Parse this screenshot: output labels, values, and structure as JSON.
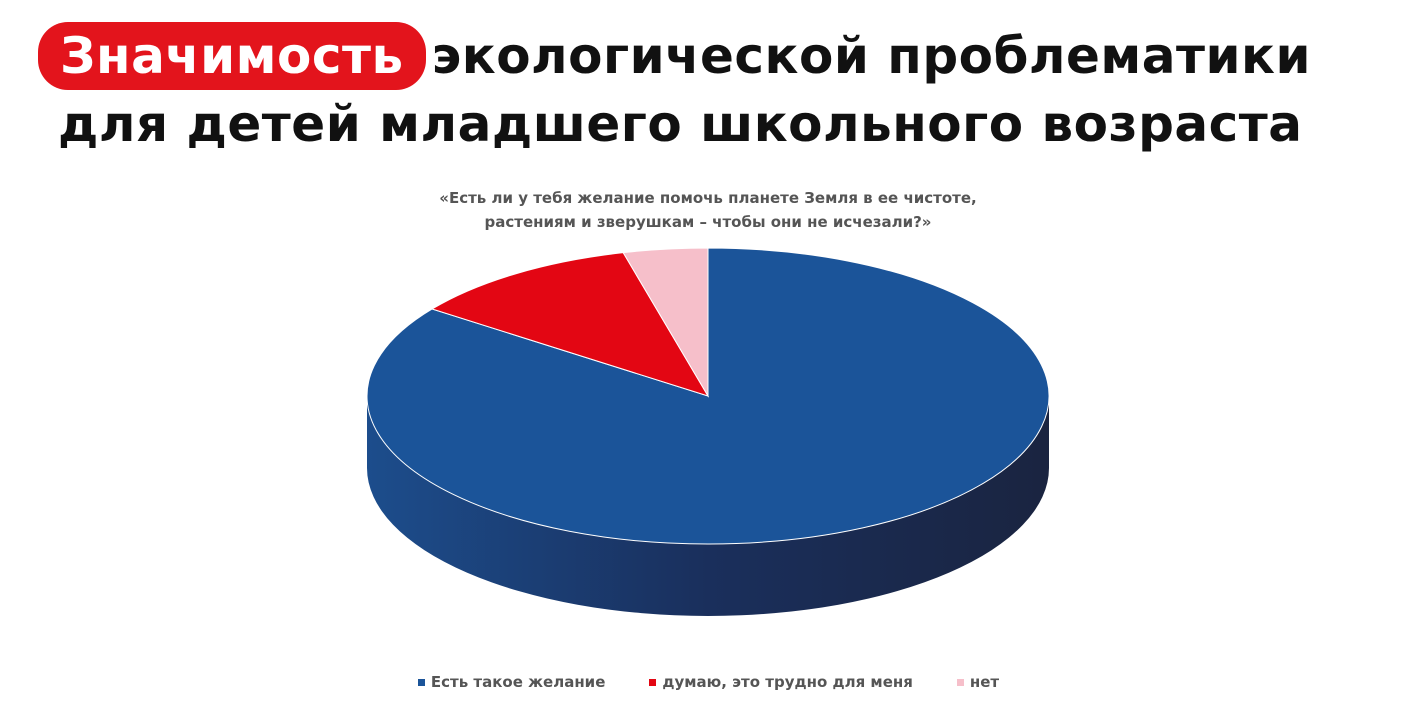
{
  "title": {
    "highlight": "Значимость",
    "line1_rest": "экологической проблематики",
    "line2": "для детей младшего школьного возраста",
    "highlight_color": "#e3141c"
  },
  "chart_data": {
    "type": "pie",
    "style": "3d",
    "title": "«Есть ли у тебя желание помочь планете Земля в ее чистоте, растениям и зверушкам – чтобы они не исчезали?»",
    "title_lines": [
      "«Есть ли у тебя желание помочь планете Земля в ее чистоте,",
      "растениям и зверушкам – чтобы они не исчезали?»"
    ],
    "categories": [
      "Есть такое желание",
      "думаю, это трудно для меня",
      "нет"
    ],
    "values": [
      85,
      11,
      4
    ],
    "colors": [
      "#1b5499",
      "#e30613",
      "#f6bfca"
    ],
    "legend_position": "bottom"
  }
}
